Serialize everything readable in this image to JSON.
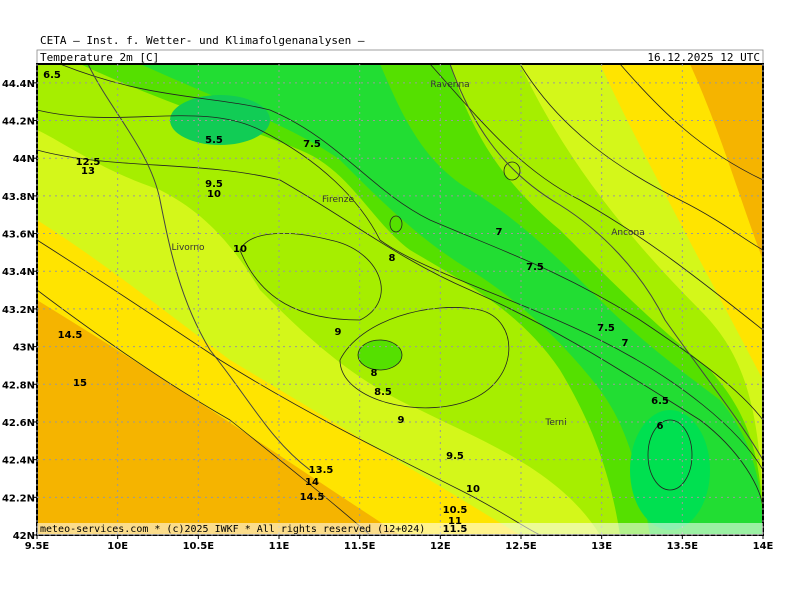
{
  "header": "CETA — Inst. f. Wetter- und Klimafolgenanalysen —",
  "title": "Temperature_2m_[C]",
  "date": "16.12.2025 12 UTC",
  "footer": "meteo-services.com * (c)2025 IWKF * All rights reserved (12+024)",
  "lonlim": [
    9.5,
    14
  ],
  "latlim": [
    42,
    44.5
  ],
  "lon_ticks": [
    {
      "value": 9.5,
      "label": "9.5E"
    },
    {
      "value": 10,
      "label": "10E"
    },
    {
      "value": 10.5,
      "label": "10.5E"
    },
    {
      "value": 11,
      "label": "11E"
    },
    {
      "value": 11.5,
      "label": "11.5E"
    },
    {
      "value": 12,
      "label": "12E"
    },
    {
      "value": 12.5,
      "label": "12.5E"
    },
    {
      "value": 13,
      "label": "13E"
    },
    {
      "value": 13.5,
      "label": "13.5E"
    },
    {
      "value": 14,
      "label": "14E"
    }
  ],
  "lat_ticks": [
    {
      "value": 42,
      "label": "42N"
    },
    {
      "value": 42.2,
      "label": "42.2N"
    },
    {
      "value": 42.4,
      "label": "42.4N"
    },
    {
      "value": 42.6,
      "label": "42.6N"
    },
    {
      "value": 42.8,
      "label": "42.8N"
    },
    {
      "value": 43,
      "label": "43N"
    },
    {
      "value": 43.2,
      "label": "43.2N"
    },
    {
      "value": 43.4,
      "label": "43.4N"
    },
    {
      "value": 43.6,
      "label": "43.6N"
    },
    {
      "value": 43.8,
      "label": "43.8N"
    },
    {
      "value": 44,
      "label": "44N"
    },
    {
      "value": 44.2,
      "label": "44.2N"
    },
    {
      "value": 44.4,
      "label": "44.4N"
    }
  ],
  "cities": [
    "Ravenna",
    "Firenze",
    "Livorno",
    "Ancona",
    "Terni"
  ],
  "contour_labels": [
    6.5,
    5.5,
    7.5,
    12.5,
    13,
    9.5,
    10,
    10,
    8,
    7,
    7.5,
    9,
    14.5,
    7.5,
    7,
    8,
    15,
    8.5,
    6.5,
    9,
    6,
    9.5,
    13.5,
    14,
    10,
    14.5,
    10.5,
    11,
    11.5
  ]
}
